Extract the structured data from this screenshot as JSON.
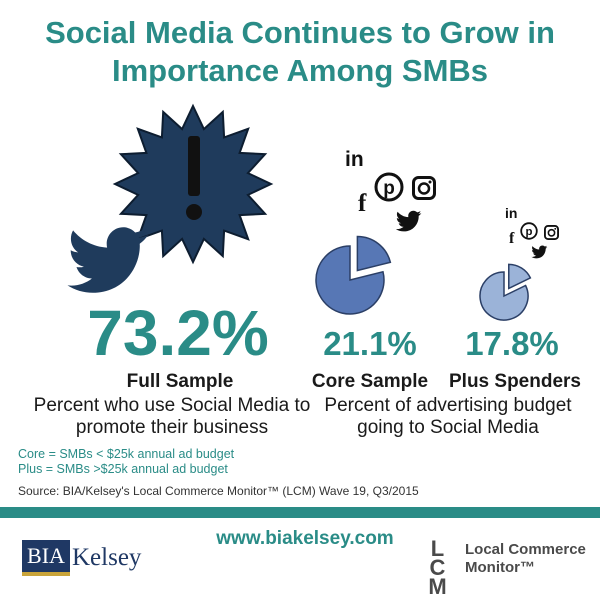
{
  "title": {
    "line1": "Social Media Continues to Grow in",
    "line2": "Importance Among SMBs"
  },
  "full_sample": {
    "value": "73.2%",
    "label": "Full Sample",
    "description": "Percent who use Social Media to promote their business"
  },
  "core_sample": {
    "value": "21.1%",
    "label": "Core Sample",
    "pie_fraction": 0.211
  },
  "plus_spenders": {
    "value": "17.8%",
    "label": "Plus Spenders",
    "pie_fraction": 0.178
  },
  "ad_budget_description": "Percent of advertising budget going to Social Media",
  "notes": {
    "core": "Core = SMBs < $25k annual ad budget",
    "plus": "Plus = SMBs >$25k annual ad budget"
  },
  "source": "Source: BIA/Kelsey's Local Commerce Monitor™ (LCM) Wave 19, Q3/2015",
  "website": "www.biakelsey.com",
  "logos": {
    "bia": "BIA",
    "kelsey": "Kelsey",
    "lcm": "LCM",
    "lcm_line1": "Local Commerce",
    "lcm_line2": "Monitor™"
  },
  "icons": {
    "burst": "exclamation-burst-icon",
    "twitter": "twitter-bird-icon",
    "linkedin_text": "in",
    "facebook_text": "f",
    "pinterest_text": "p"
  },
  "colors": {
    "teal": "#2a8c87",
    "navy": "#1f3b5c",
    "core_pie": "#5777b5",
    "plus_pie": "#9bb3d8"
  }
}
